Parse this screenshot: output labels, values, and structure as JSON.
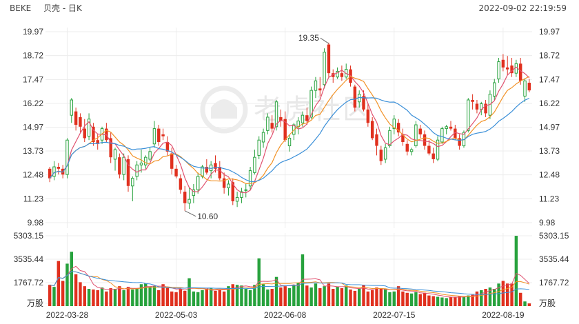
{
  "header": {
    "ticker": "BEKE",
    "name": "贝壳 - 日K",
    "timestamp": "2022-09-02 22:19:59"
  },
  "watermark": "老虎社区",
  "chart_data": [
    {
      "type": "candlestick",
      "title": "贝壳 - 日K",
      "dates": [
        "2022-03-28",
        "2022-05-03",
        "2022-06-08",
        "2022-07-15",
        "2022-08-19"
      ],
      "x_tick_labels": [
        "2022-03-28",
        "2022-05-03",
        "2022-06-08",
        "2022-07-15",
        "2022-08-19"
      ],
      "y_tick_labels": [
        "19.97",
        "18.72",
        "17.47",
        "16.22",
        "14.97",
        "13.73",
        "12.48",
        "11.23",
        "9.98"
      ],
      "ylim": [
        9.98,
        19.97
      ],
      "annotations": [
        {
          "label": "19.35",
          "value": 19.35
        },
        {
          "label": "10.60",
          "value": 10.6
        }
      ],
      "up_color": "#27a23d",
      "down_color": "#e0301e",
      "grid": true,
      "ohlc": [
        [
          12.8,
          12.9,
          12.1,
          12.3
        ],
        [
          12.4,
          13.2,
          12.2,
          12.9
        ],
        [
          12.9,
          13.1,
          12.5,
          12.8
        ],
        [
          12.8,
          13.0,
          12.3,
          12.5
        ],
        [
          12.5,
          14.4,
          12.3,
          14.3
        ],
        [
          15.6,
          16.5,
          15.2,
          16.4
        ],
        [
          15.8,
          16.0,
          14.8,
          15.1
        ],
        [
          15.5,
          15.7,
          14.7,
          15.0
        ],
        [
          14.9,
          15.4,
          14.2,
          14.4
        ],
        [
          14.5,
          15.7,
          14.3,
          15.4
        ],
        [
          15.0,
          15.2,
          14.0,
          14.2
        ],
        [
          14.3,
          14.6,
          13.8,
          14.1
        ],
        [
          14.3,
          15.0,
          14.1,
          14.9
        ],
        [
          14.9,
          15.2,
          14.2,
          14.3
        ],
        [
          14.4,
          14.7,
          13.1,
          13.4
        ],
        [
          13.3,
          13.9,
          12.7,
          13.8
        ],
        [
          13.4,
          13.6,
          12.3,
          12.5
        ],
        [
          12.5,
          13.6,
          12.2,
          13.4
        ],
        [
          13.3,
          13.5,
          11.6,
          11.9
        ],
        [
          11.9,
          12.4,
          11.1,
          12.3
        ],
        [
          12.4,
          13.2,
          12.2,
          13.0
        ],
        [
          13.0,
          13.8,
          12.6,
          13.1
        ],
        [
          13.0,
          13.5,
          12.8,
          13.4
        ],
        [
          13.3,
          13.9,
          13.2,
          13.7
        ],
        [
          14.1,
          15.3,
          13.9,
          14.9
        ],
        [
          14.9,
          15.1,
          14.0,
          14.2
        ],
        [
          14.6,
          14.9,
          14.3,
          14.5
        ],
        [
          14.2,
          14.5,
          13.5,
          13.7
        ],
        [
          13.6,
          13.9,
          12.5,
          12.8
        ],
        [
          12.8,
          13.0,
          12.3,
          12.4
        ],
        [
          12.3,
          12.5,
          11.5,
          11.7
        ],
        [
          11.6,
          11.9,
          10.6,
          11.0
        ],
        [
          11.0,
          11.8,
          10.7,
          11.2
        ],
        [
          11.4,
          12.0,
          11.0,
          11.7
        ],
        [
          11.7,
          12.6,
          11.5,
          12.4
        ],
        [
          12.4,
          13.0,
          12.3,
          12.9
        ],
        [
          12.9,
          13.3,
          12.5,
          12.6
        ],
        [
          12.7,
          13.2,
          12.3,
          13.0
        ],
        [
          13.1,
          13.5,
          12.6,
          12.8
        ],
        [
          12.9,
          13.2,
          12.2,
          12.3
        ],
        [
          12.3,
          12.6,
          11.5,
          11.8
        ],
        [
          11.8,
          12.2,
          11.4,
          12.0
        ],
        [
          12.1,
          12.3,
          10.9,
          11.1
        ],
        [
          11.1,
          11.6,
          10.8,
          11.3
        ],
        [
          11.3,
          11.8,
          11.0,
          11.6
        ],
        [
          11.7,
          12.0,
          11.3,
          11.7
        ],
        [
          11.9,
          12.9,
          11.7,
          12.7
        ],
        [
          12.6,
          13.8,
          12.5,
          13.4
        ],
        [
          13.5,
          14.5,
          13.3,
          14.3
        ],
        [
          14.2,
          14.9,
          13.9,
          14.7
        ],
        [
          14.8,
          15.7,
          14.6,
          15.5
        ],
        [
          15.2,
          15.6,
          14.7,
          14.9
        ],
        [
          15.0,
          16.4,
          14.8,
          16.3
        ],
        [
          15.5,
          15.9,
          15.0,
          15.3
        ],
        [
          15.4,
          15.8,
          14.2,
          14.3
        ],
        [
          14.0,
          14.6,
          13.7,
          14.4
        ],
        [
          14.6,
          15.2,
          14.3,
          15.1
        ],
        [
          15.0,
          15.5,
          14.6,
          15.3
        ],
        [
          15.2,
          15.8,
          15.0,
          15.6
        ],
        [
          15.6,
          16.0,
          15.1,
          15.3
        ],
        [
          15.5,
          17.1,
          15.4,
          16.9
        ],
        [
          16.9,
          17.6,
          16.5,
          17.4
        ],
        [
          17.0,
          17.6,
          16.6,
          16.9
        ],
        [
          17.2,
          19.1,
          17.0,
          18.9
        ],
        [
          19.3,
          19.4,
          17.6,
          17.8
        ],
        [
          17.8,
          18.0,
          17.3,
          17.6
        ],
        [
          17.6,
          18.1,
          17.5,
          17.9
        ],
        [
          17.8,
          18.2,
          17.4,
          17.6
        ],
        [
          17.6,
          18.3,
          17.5,
          18.0
        ],
        [
          18.0,
          18.2,
          17.1,
          17.3
        ],
        [
          17.1,
          17.2,
          15.8,
          16.0
        ],
        [
          16.3,
          16.9,
          16.0,
          16.7
        ],
        [
          16.6,
          16.9,
          15.8,
          15.9
        ],
        [
          15.9,
          16.2,
          15.0,
          15.2
        ],
        [
          15.3,
          15.5,
          14.3,
          14.4
        ],
        [
          14.6,
          14.9,
          13.5,
          14.0
        ],
        [
          13.8,
          14.0,
          13.0,
          13.2
        ],
        [
          13.3,
          14.1,
          13.1,
          13.9
        ],
        [
          14.0,
          15.0,
          13.9,
          14.8
        ],
        [
          14.9,
          15.6,
          14.6,
          15.4
        ],
        [
          15.2,
          15.4,
          14.5,
          14.7
        ],
        [
          14.6,
          14.9,
          14.0,
          14.2
        ],
        [
          14.1,
          14.3,
          13.5,
          13.7
        ],
        [
          13.7,
          13.9,
          13.5,
          13.8
        ],
        [
          14.0,
          15.3,
          13.9,
          15.1
        ],
        [
          14.9,
          15.1,
          14.4,
          14.6
        ],
        [
          14.6,
          14.8,
          13.8,
          14.0
        ],
        [
          14.0,
          14.3,
          13.5,
          13.6
        ],
        [
          13.6,
          13.9,
          13.1,
          13.3
        ],
        [
          13.3,
          14.5,
          13.2,
          14.3
        ],
        [
          14.2,
          15.0,
          14.1,
          14.9
        ],
        [
          14.9,
          15.1,
          14.6,
          15.0
        ],
        [
          15.0,
          15.3,
          14.8,
          14.9
        ],
        [
          14.9,
          15.1,
          14.3,
          14.4
        ],
        [
          14.4,
          14.6,
          13.8,
          14.0
        ],
        [
          14.0,
          14.8,
          13.9,
          14.7
        ],
        [
          14.8,
          16.5,
          14.7,
          16.4
        ],
        [
          16.4,
          16.7,
          15.9,
          16.3
        ],
        [
          16.2,
          16.4,
          15.7,
          15.9
        ],
        [
          15.9,
          16.3,
          15.6,
          16.2
        ],
        [
          16.2,
          16.4,
          15.5,
          15.7
        ],
        [
          15.6,
          16.9,
          15.4,
          16.7
        ],
        [
          16.6,
          17.5,
          16.4,
          17.3
        ],
        [
          17.5,
          18.6,
          17.3,
          18.4
        ],
        [
          18.5,
          18.8,
          17.9,
          18.1
        ],
        [
          18.1,
          18.7,
          17.7,
          18.0
        ],
        [
          18.2,
          18.6,
          17.6,
          17.8
        ],
        [
          17.8,
          18.5,
          17.6,
          18.3
        ],
        [
          18.3,
          18.6,
          17.2,
          17.4
        ],
        [
          16.6,
          17.5,
          16.3,
          17.4
        ],
        [
          17.3,
          17.5,
          16.8,
          16.9
        ]
      ]
    },
    {
      "type": "bar",
      "title": "Volume",
      "unit": "万股",
      "y_tick_labels": [
        "5303.15",
        "3535.44",
        "1767.72",
        "万股"
      ],
      "ylim": [
        0,
        5303.15
      ],
      "volumes": [
        1600,
        1450,
        3400,
        1900,
        3200,
        4100,
        2400,
        1800,
        1500,
        1300,
        1250,
        1200,
        1400,
        1100,
        1350,
        1300,
        1500,
        1200,
        1450,
        1250,
        1300,
        1650,
        1700,
        1450,
        1500,
        1200,
        1650,
        1400,
        1100,
        1050,
        1300,
        1150,
        2100,
        1100,
        1050,
        1200,
        1300,
        1350,
        1150,
        1200,
        1100,
        1500,
        1650,
        1600,
        1550,
        1300,
        1200,
        1600,
        3600,
        1650,
        1250,
        1300,
        2200,
        1400,
        1500,
        1350,
        1600,
        1750,
        3900,
        1550,
        1400,
        1700,
        1350,
        1500,
        1700,
        1300,
        1450,
        1350,
        1550,
        1250,
        1150,
        1300,
        1600,
        1100,
        1200,
        1400,
        1350,
        1250,
        1050,
        1100,
        1500,
        1100,
        1000,
        950,
        1050,
        900,
        1000,
        800,
        750,
        700,
        650,
        600,
        700,
        700,
        750,
        700,
        800,
        850,
        1100,
        1200,
        1300,
        1400,
        1300,
        1700,
        1900,
        1700,
        1700,
        5300,
        1000,
        350,
        200
      ]
    }
  ]
}
